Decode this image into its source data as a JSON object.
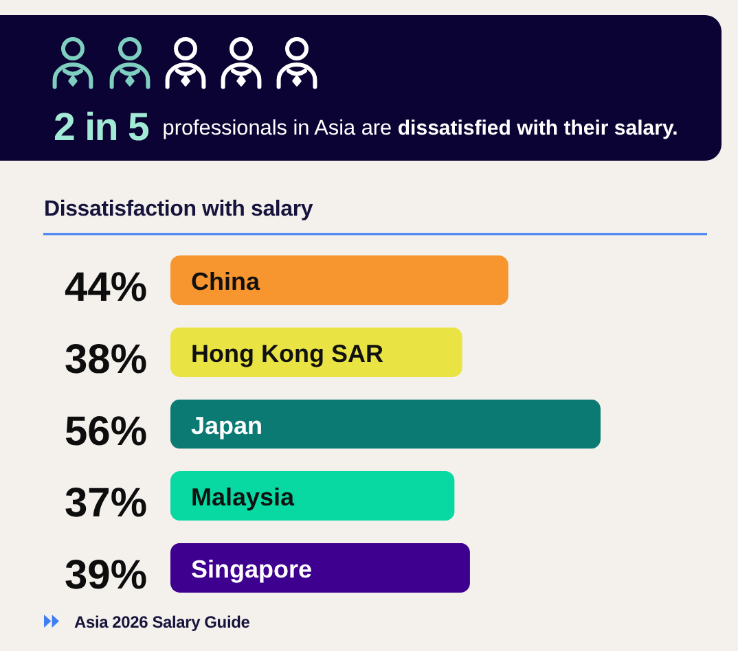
{
  "chart_data": {
    "type": "bar",
    "orientation": "horizontal",
    "title": "Dissatisfaction with salary",
    "categories": [
      "China",
      "Hong Kong SAR",
      "Japan",
      "Malaysia",
      "Singapore"
    ],
    "values": [
      44,
      38,
      56,
      37,
      39
    ],
    "colors": [
      "#f7962f",
      "#e9e343",
      "#0b7a73",
      "#08d8a2",
      "#3e008f"
    ],
    "value_labels": [
      "44%",
      "38%",
      "56%",
      "37%",
      "39%"
    ],
    "tick_labels": "y",
    "annotations": [
      "2 in 5",
      "professionals in Asia are",
      "dissatisfied with their salary.",
      "Asia 2026 Salary Guide"
    ]
  }
}
